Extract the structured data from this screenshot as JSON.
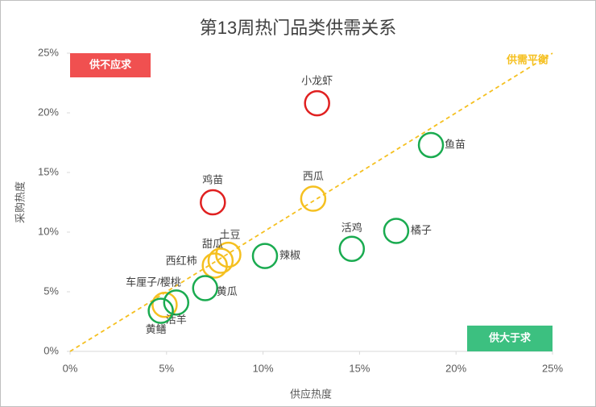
{
  "chart_data": {
    "type": "scatter",
    "title": "第13周热门品类供需关系",
    "x_label": "供应热度",
    "y_label": "采购热度",
    "labels": [
      "小龙虾",
      "鱼苗",
      "鸡苗",
      "西瓜",
      "橘子",
      "活鸡",
      "辣椒",
      "土豆",
      "甜瓜",
      "西红柿",
      "黄瓜",
      "车厘子/樱桃",
      "活羊",
      "黄鳝"
    ],
    "x": [
      12.8,
      18.7,
      7.4,
      12.6,
      16.9,
      14.6,
      10.1,
      8.2,
      7.8,
      7.5,
      7.0,
      4.9,
      5.5,
      4.7
    ],
    "y": [
      20.8,
      17.3,
      12.5,
      12.8,
      10.1,
      8.6,
      8.0,
      8.1,
      7.6,
      7.2,
      5.3,
      3.9,
      4.1,
      3.4
    ],
    "colors": [
      "#e02020",
      "#1aab50",
      "#e02020",
      "#f5c020",
      "#1aab50",
      "#1aab50",
      "#1aab50",
      "#f5c020",
      "#f5c020",
      "#f5c020",
      "#1aab50",
      "#f5c020",
      "#1aab50",
      "#1aab50"
    ],
    "xlim": [
      0,
      25
    ],
    "ylim": [
      0,
      25
    ],
    "xticks": [
      {
        "value": 0,
        "label": "0%"
      },
      {
        "value": 5,
        "label": "5%"
      },
      {
        "value": 10,
        "label": "10%"
      },
      {
        "value": 15,
        "label": "15%"
      },
      {
        "value": 20,
        "label": "20%"
      },
      {
        "value": 25,
        "label": "25%"
      }
    ],
    "yticks": [
      {
        "value": 0,
        "label": "0%"
      },
      {
        "value": 5,
        "label": "5%"
      },
      {
        "value": 10,
        "label": "10%"
      },
      {
        "value": 15,
        "label": "15%"
      },
      {
        "value": 20,
        "label": "20%"
      },
      {
        "value": 25,
        "label": "25%"
      }
    ],
    "annotations": {
      "top_left": "供不应求",
      "bottom_right": "供大于求",
      "diagonal": "供需平衡"
    },
    "annotation_colors": {
      "top_left": "#f05050",
      "bottom_right": "#3cc080",
      "diagonal": "#f5c020"
    }
  }
}
